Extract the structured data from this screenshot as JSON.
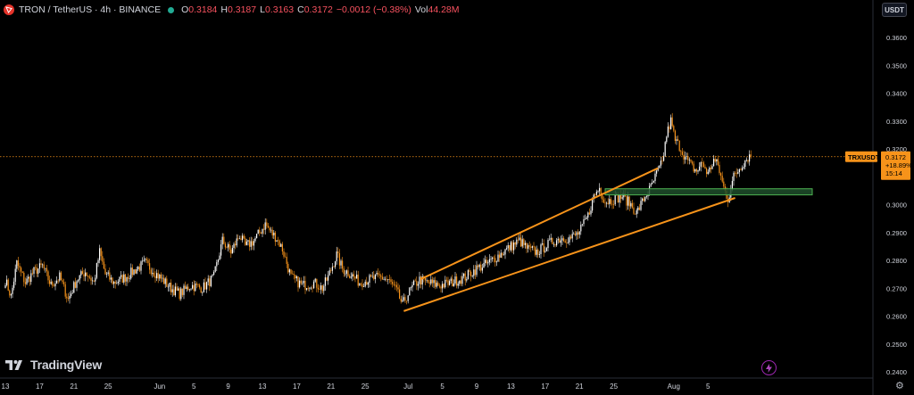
{
  "header": {
    "symbol": "TRON / TetherUS · 4h · BINANCE",
    "o_key": "O",
    "o_val": "0.3184",
    "h_key": "H",
    "h_val": "0.3187",
    "l_key": "L",
    "l_val": "0.3163",
    "c_key": "C",
    "c_val": "0.3172",
    "change": "−0.0012 (−0.38%)",
    "vol_key": "Vol",
    "vol_val": "44.28M"
  },
  "currency_button": "USDT",
  "brand": "TradingView",
  "price_label": {
    "ticker": "TRXUSDT",
    "price": "0.3172",
    "change": "+18.89%",
    "countdown": "15:14"
  },
  "colors": {
    "background": "#000000",
    "up": "#ffffff",
    "down": "#f7931a",
    "trendline": "#f7931a",
    "zone_fill": "#1e4d2b",
    "zone_border": "#4caf50",
    "axis_text": "#d1d4dc"
  },
  "chart_data": {
    "type": "candlestick",
    "symbol": "TRXUSDT",
    "timeframe": "4h",
    "y_ticks": [
      "0.3600",
      "0.3500",
      "0.3400",
      "0.3300",
      "0.3200",
      "0.3100",
      "0.3000",
      "0.2900",
      "0.2800",
      "0.2700",
      "0.2600",
      "0.2500",
      "0.2400"
    ],
    "y_tick_values": [
      0.36,
      0.35,
      0.34,
      0.33,
      0.32,
      0.31,
      0.3,
      0.29,
      0.28,
      0.27,
      0.26,
      0.25,
      0.24
    ],
    "x_ticks": [
      "13",
      "17",
      "21",
      "25",
      "Jun",
      "5",
      "9",
      "13",
      "17",
      "21",
      "25",
      "Jul",
      "5",
      "9",
      "13",
      "17",
      "21",
      "25",
      "Aug",
      "5"
    ],
    "x_tick_idx": [
      0,
      24,
      48,
      72,
      108,
      132,
      156,
      180,
      204,
      228,
      252,
      282,
      306,
      330,
      354,
      378,
      402,
      426,
      468,
      492
    ],
    "last_price": 0.3172,
    "price_path": [
      [
        0,
        0.273
      ],
      [
        4,
        0.267
      ],
      [
        8,
        0.279
      ],
      [
        14,
        0.272
      ],
      [
        20,
        0.276
      ],
      [
        26,
        0.278
      ],
      [
        32,
        0.271
      ],
      [
        38,
        0.274
      ],
      [
        44,
        0.266
      ],
      [
        50,
        0.273
      ],
      [
        56,
        0.276
      ],
      [
        62,
        0.272
      ],
      [
        66,
        0.283
      ],
      [
        70,
        0.275
      ],
      [
        76,
        0.272
      ],
      [
        84,
        0.274
      ],
      [
        92,
        0.277
      ],
      [
        98,
        0.279
      ],
      [
        104,
        0.276
      ],
      [
        110,
        0.273
      ],
      [
        116,
        0.27
      ],
      [
        122,
        0.268
      ],
      [
        130,
        0.271
      ],
      [
        138,
        0.27
      ],
      [
        146,
        0.274
      ],
      [
        152,
        0.287
      ],
      [
        158,
        0.283
      ],
      [
        164,
        0.289
      ],
      [
        168,
        0.285
      ],
      [
        174,
        0.287
      ],
      [
        178,
        0.29
      ],
      [
        182,
        0.293
      ],
      [
        186,
        0.29
      ],
      [
        190,
        0.288
      ],
      [
        194,
        0.284
      ],
      [
        200,
        0.274
      ],
      [
        208,
        0.271
      ],
      [
        216,
        0.272
      ],
      [
        222,
        0.27
      ],
      [
        226,
        0.274
      ],
      [
        232,
        0.282
      ],
      [
        236,
        0.277
      ],
      [
        242,
        0.275
      ],
      [
        248,
        0.272
      ],
      [
        254,
        0.273
      ],
      [
        262,
        0.274
      ],
      [
        268,
        0.273
      ],
      [
        274,
        0.269
      ],
      [
        278,
        0.264
      ],
      [
        282,
        0.268
      ],
      [
        286,
        0.271
      ],
      [
        290,
        0.273
      ],
      [
        296,
        0.272
      ],
      [
        304,
        0.271
      ],
      [
        312,
        0.272
      ],
      [
        322,
        0.274
      ],
      [
        330,
        0.277
      ],
      [
        338,
        0.279
      ],
      [
        346,
        0.282
      ],
      [
        354,
        0.285
      ],
      [
        360,
        0.287
      ],
      [
        366,
        0.284
      ],
      [
        372,
        0.283
      ],
      [
        378,
        0.285
      ],
      [
        384,
        0.287
      ],
      [
        390,
        0.288
      ],
      [
        396,
        0.288
      ],
      [
        402,
        0.29
      ],
      [
        408,
        0.296
      ],
      [
        412,
        0.303
      ],
      [
        416,
        0.306
      ],
      [
        420,
        0.301
      ],
      [
        426,
        0.302
      ],
      [
        432,
        0.303
      ],
      [
        438,
        0.3
      ],
      [
        442,
        0.297
      ],
      [
        448,
        0.303
      ],
      [
        452,
        0.306
      ],
      [
        456,
        0.311
      ],
      [
        460,
        0.315
      ],
      [
        463,
        0.325
      ],
      [
        466,
        0.33
      ],
      [
        469,
        0.323
      ],
      [
        472,
        0.321
      ],
      [
        476,
        0.317
      ],
      [
        480,
        0.314
      ],
      [
        484,
        0.312
      ],
      [
        488,
        0.315
      ],
      [
        492,
        0.311
      ],
      [
        496,
        0.316
      ],
      [
        499,
        0.314
      ],
      [
        503,
        0.306
      ],
      [
        506,
        0.302
      ],
      [
        510,
        0.31
      ],
      [
        514,
        0.313
      ],
      [
        518,
        0.316
      ],
      [
        522,
        0.318
      ]
    ],
    "annotations": {
      "upper_channel": {
        "from": [
          291,
          0.2733
        ],
        "to": [
          457,
          0.3131
        ]
      },
      "lower_channel": {
        "from": [
          279,
          0.2618
        ],
        "to": [
          511,
          0.3024
        ]
      },
      "support_zone": {
        "x_from": 420,
        "x_to": 565,
        "y_low": 0.3035,
        "y_high": 0.3057
      }
    }
  }
}
